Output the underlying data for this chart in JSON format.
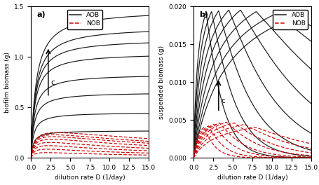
{
  "title_a": "a)",
  "title_b": "b)",
  "xlabel": "dilution rate D (1/day)",
  "ylabel_a": "biofilm biomass (g)",
  "ylabel_b": "suspended biomass (g)",
  "xlim": [
    0,
    15
  ],
  "ylim_a": [
    0,
    1.5
  ],
  "ylim_b": [
    0,
    0.02
  ],
  "yticks_a": [
    0,
    0.5,
    1.0,
    1.5
  ],
  "yticks_b": [
    0,
    0.005,
    0.01,
    0.015,
    0.02
  ],
  "n_curves": 8,
  "aob_color": "#1a1a1a",
  "nob_color": "#cc0000",
  "arrow_label": "c",
  "legend_aob": "AOB",
  "legend_nob": "NOB",
  "aob_biofilm_A": [
    0.27,
    0.45,
    0.65,
    0.83,
    1.04,
    1.18,
    1.3,
    1.47
  ],
  "aob_biofilm_k": [
    0.3,
    0.35,
    0.4,
    0.45,
    0.5,
    0.55,
    0.6,
    0.65
  ],
  "nob_biofilm_A": [
    0.08,
    0.13,
    0.18,
    0.22,
    0.26,
    0.29,
    0.31,
    0.33
  ],
  "nob_biofilm_k1": [
    0.5,
    0.5,
    0.5,
    0.5,
    0.5,
    0.5,
    0.5,
    0.5
  ],
  "nob_biofilm_k2": [
    8.0,
    9.0,
    10.0,
    12.0,
    14.0,
    16.0,
    18.0,
    22.0
  ],
  "aob_susp_peak": [
    0.0192,
    0.0193,
    0.0194,
    0.0195,
    0.0195,
    0.0193,
    0.019,
    0.0185
  ],
  "aob_susp_pd": [
    1.6,
    2.3,
    3.2,
    4.5,
    6.0,
    8.0,
    10.5,
    13.0
  ],
  "aob_susp_k1": [
    0.35,
    0.35,
    0.35,
    0.35,
    0.35,
    0.35,
    0.35,
    0.35
  ],
  "aob_susp_k2": [
    0.55,
    0.38,
    0.27,
    0.19,
    0.13,
    0.09,
    0.065,
    0.048
  ],
  "nob_susp_peak": [
    0.004,
    0.0042,
    0.0044,
    0.0046,
    0.0047,
    0.0046,
    0.0044,
    0.004
  ],
  "nob_susp_pd": [
    1.3,
    1.9,
    2.6,
    3.3,
    4.2,
    5.2,
    6.5,
    8.0
  ],
  "nob_susp_k1": [
    0.4,
    0.4,
    0.4,
    0.4,
    0.4,
    0.4,
    0.4,
    0.4
  ],
  "nob_susp_k2": [
    0.8,
    0.6,
    0.46,
    0.36,
    0.28,
    0.22,
    0.17,
    0.13
  ]
}
